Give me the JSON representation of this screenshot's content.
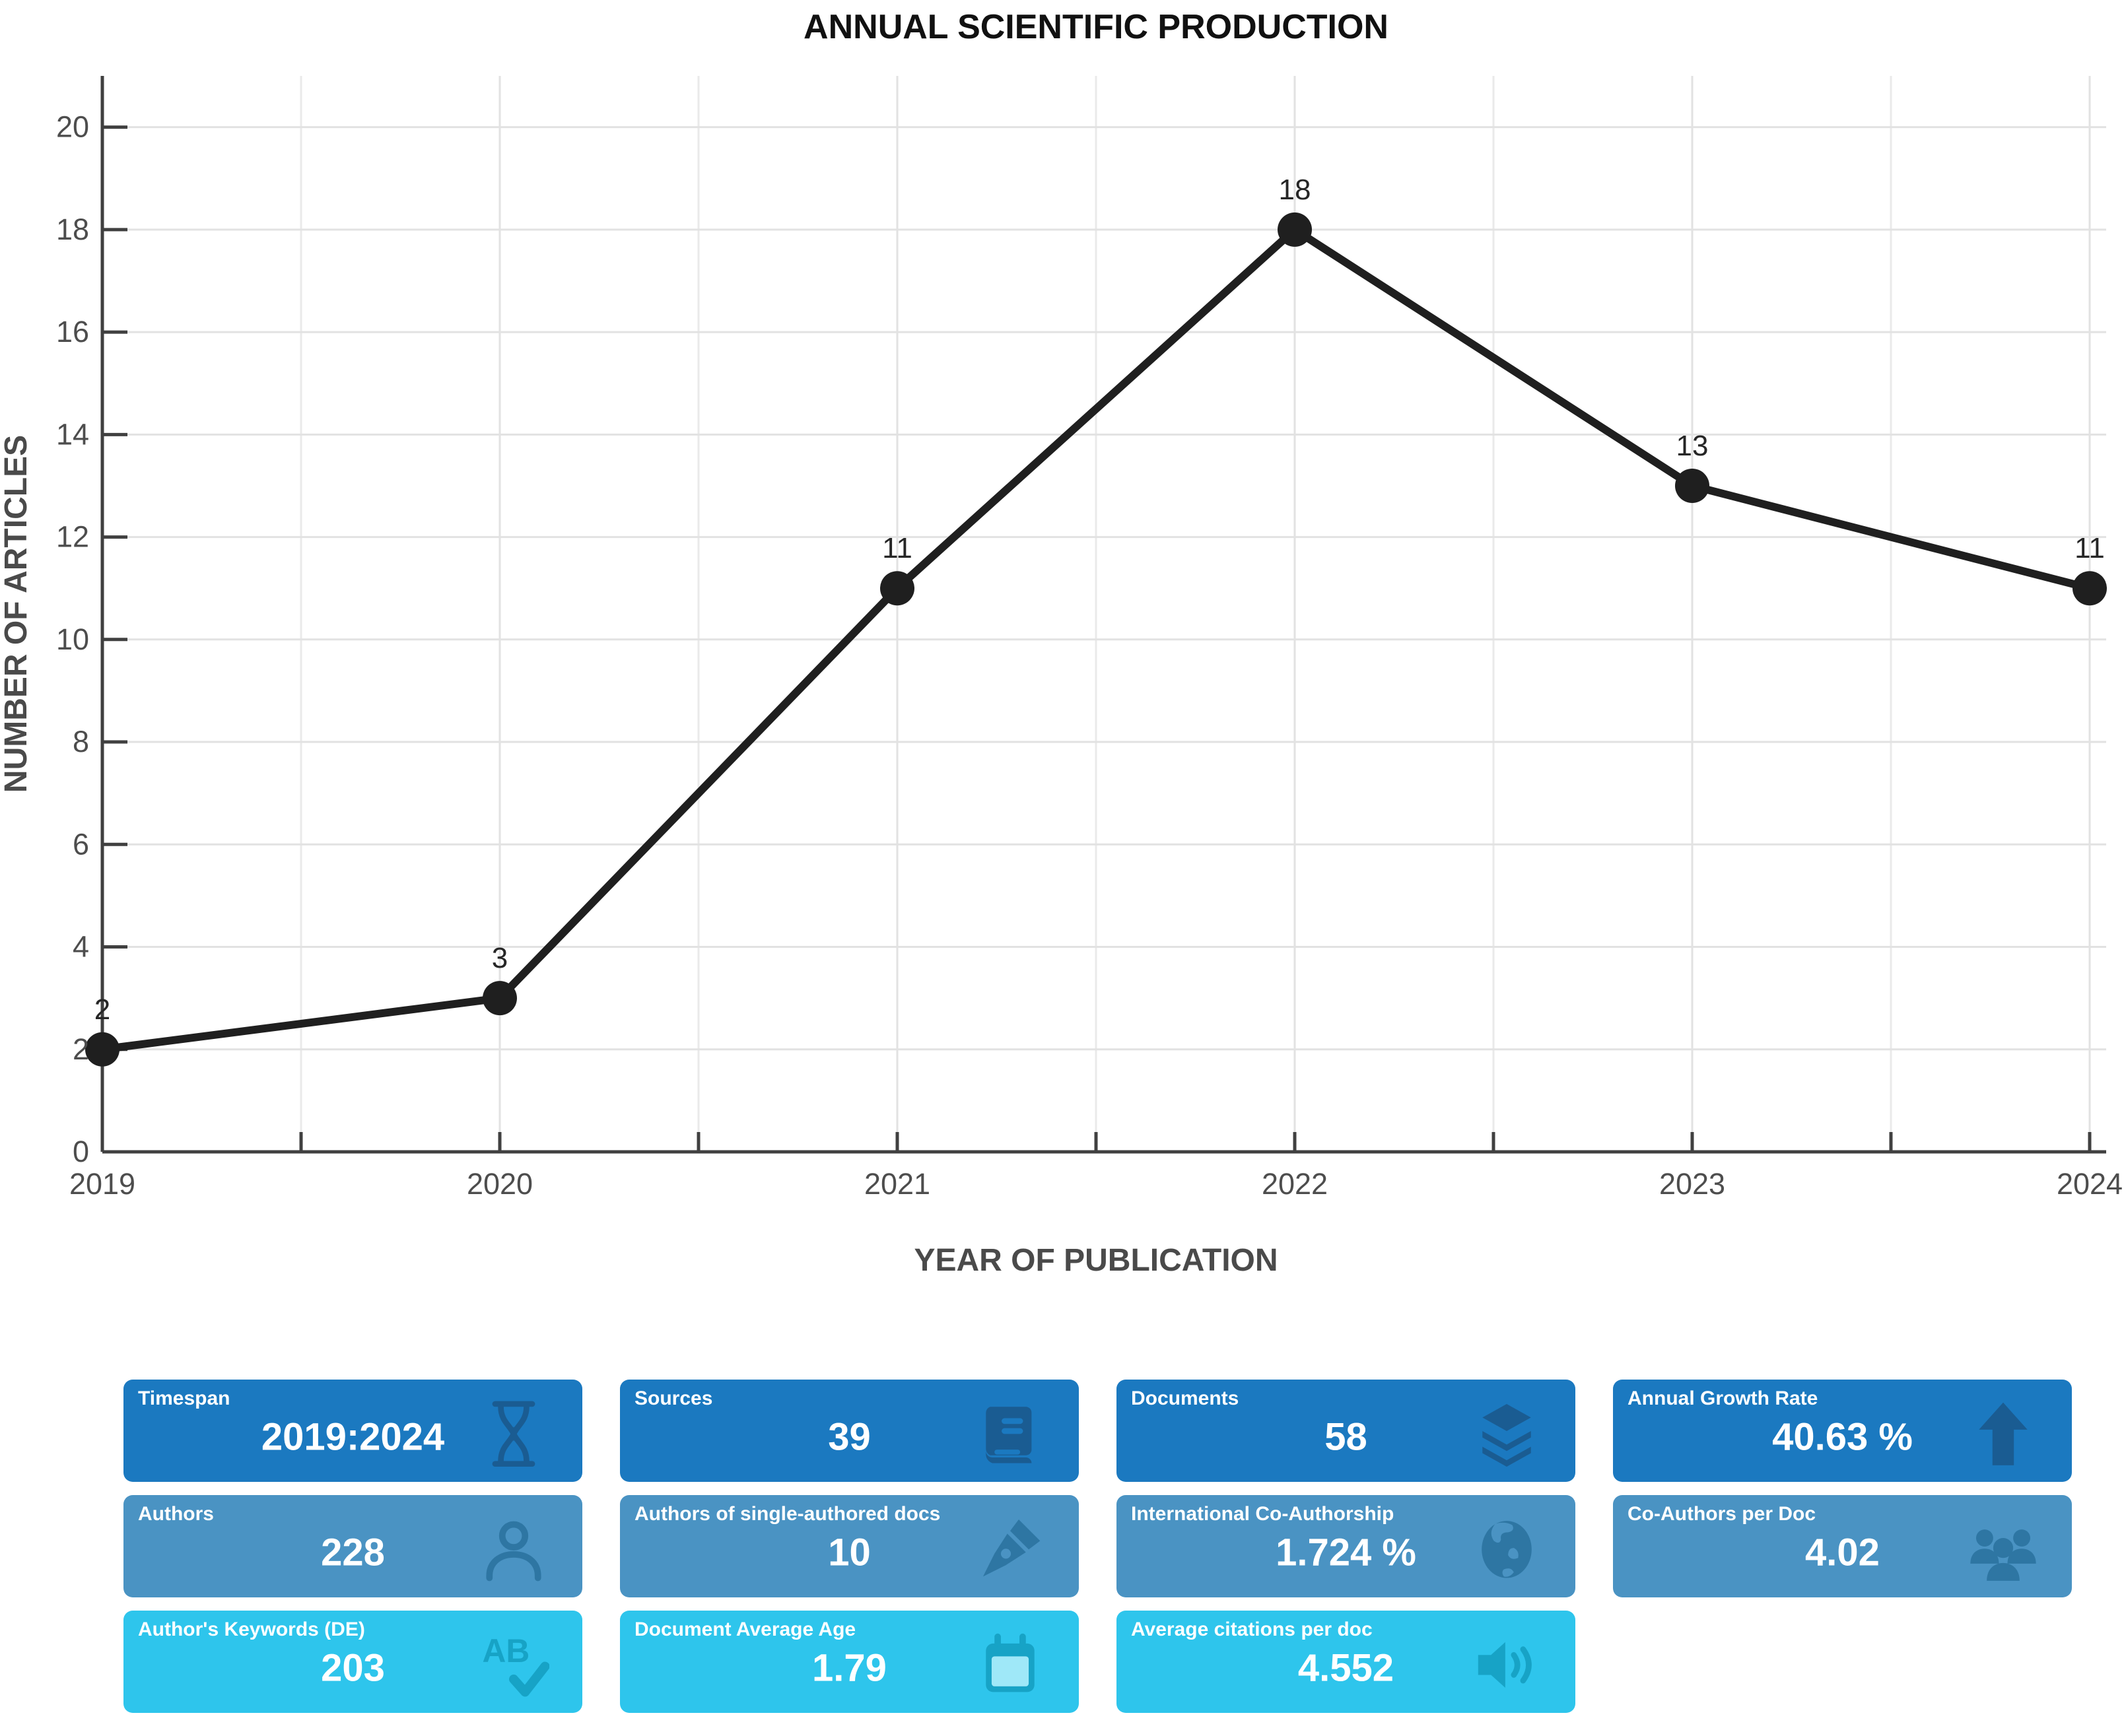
{
  "chart_data": {
    "type": "line",
    "title": "ANNUAL SCIENTIFIC PRODUCTION",
    "xlabel": "YEAR OF PUBLICATION",
    "ylabel": "NUMBER OF ARTICLES",
    "x": [
      2019,
      2020,
      2021,
      2022,
      2023,
      2024
    ],
    "values": [
      2,
      3,
      11,
      18,
      13,
      11
    ],
    "point_labels": [
      "2",
      "3",
      "11",
      "18",
      "13",
      "11"
    ],
    "ylim": [
      0,
      21
    ],
    "yticks": [
      0,
      2,
      4,
      6,
      8,
      10,
      12,
      14,
      16,
      18,
      20
    ],
    "grid": true,
    "legend_position": "none"
  },
  "colors": {
    "row1_bg": "#1b79c0",
    "row1_icon": "#1a5c92",
    "row2_bg": "#4a93c3",
    "row2_icon": "#2e76a3",
    "row3_bg": "#2ec5ec",
    "row3_icon": "#17a3c6",
    "row3_icon_inner": "#9fe8f8",
    "line": "#1f1f1f",
    "grid_major": "#e2e2e2",
    "grid_minor": "#eaeaea",
    "axis": "#404040",
    "tick_label": "#4d4d4d",
    "axis_title": "#4a4a4a"
  },
  "cards": {
    "timespan": {
      "label": "Timespan",
      "value": "2019:2024",
      "icon": "hourglass-icon"
    },
    "sources": {
      "label": "Sources",
      "value": "39",
      "icon": "book-icon"
    },
    "documents": {
      "label": "Documents",
      "value": "58",
      "icon": "layers-icon"
    },
    "annual_growth_rate": {
      "label": "Annual Growth Rate",
      "value": "40.63 %",
      "icon": "arrow-up-icon"
    },
    "authors": {
      "label": "Authors",
      "value": "228",
      "icon": "user-icon"
    },
    "single_authored": {
      "label": "Authors of single-authored docs",
      "value": "10",
      "icon": "pen-nib-icon"
    },
    "intl_coauthorship": {
      "label": "International Co-Authorship",
      "value": "1.724 %",
      "icon": "globe-icon"
    },
    "coauthors_per_doc": {
      "label": "Co-Authors per Doc",
      "value": "4.02",
      "icon": "users-icon"
    },
    "authors_keywords": {
      "label": "Author's Keywords (DE)",
      "value": "203",
      "icon": "spellcheck-icon"
    },
    "doc_average_age": {
      "label": "Document Average Age",
      "value": "1.79",
      "icon": "calendar-icon"
    },
    "avg_citations": {
      "label": "Average citations per doc",
      "value": "4.552",
      "icon": "volume-icon"
    }
  }
}
